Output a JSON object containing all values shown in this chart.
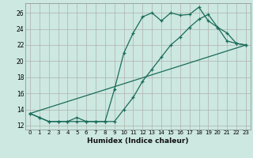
{
  "xlabel": "Humidex (Indice chaleur)",
  "bg_color": "#cce8e0",
  "grid_color": "#b0b0b0",
  "line_color": "#1a6b5a",
  "xlim": [
    -0.5,
    23.5
  ],
  "ylim": [
    11.5,
    27.2
  ],
  "xticks": [
    0,
    1,
    2,
    3,
    4,
    5,
    6,
    7,
    8,
    9,
    10,
    11,
    12,
    13,
    14,
    15,
    16,
    17,
    18,
    19,
    20,
    21,
    22,
    23
  ],
  "yticks": [
    12,
    14,
    16,
    18,
    20,
    22,
    24,
    26
  ],
  "line1_x": [
    0,
    1,
    2,
    3,
    4,
    5,
    6,
    7,
    8,
    9,
    10,
    11,
    12,
    13,
    14,
    15,
    16,
    17,
    18,
    19,
    20,
    21,
    22,
    23
  ],
  "line1_y": [
    13.5,
    13.0,
    12.5,
    12.5,
    12.5,
    13.0,
    12.5,
    12.5,
    12.5,
    16.5,
    21.0,
    23.5,
    25.5,
    26.0,
    25.0,
    26.0,
    25.7,
    25.8,
    26.7,
    25.0,
    24.2,
    23.5,
    22.2,
    22.0
  ],
  "line2_x": [
    0,
    1,
    2,
    3,
    4,
    5,
    6,
    7,
    8,
    9,
    10,
    11,
    12,
    13,
    14,
    15,
    16,
    17,
    18,
    19,
    20,
    21,
    22,
    23
  ],
  "line2_y": [
    13.5,
    13.0,
    12.5,
    12.5,
    12.5,
    12.5,
    12.5,
    12.5,
    12.5,
    12.5,
    14.0,
    15.5,
    17.5,
    19.0,
    20.5,
    22.0,
    23.0,
    24.2,
    25.2,
    25.8,
    24.2,
    22.5,
    22.2,
    22.0
  ],
  "line3_x": [
    0,
    23
  ],
  "line3_y": [
    13.5,
    22.0
  ]
}
